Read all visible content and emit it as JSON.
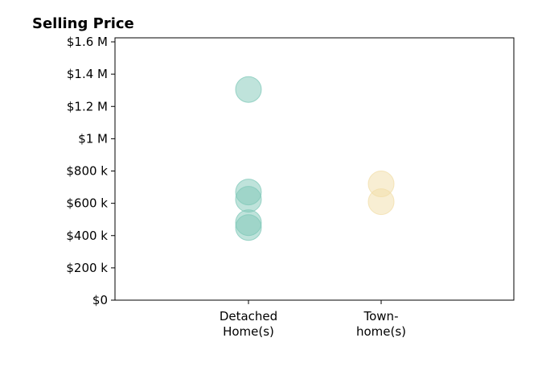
{
  "chart_data": {
    "type": "scatter",
    "title": "Selling Price",
    "xlabel": "",
    "ylabel": "",
    "ylim": [
      0,
      1625000
    ],
    "y_ticks": [
      {
        "value": 0,
        "label": "$0"
      },
      {
        "value": 200000,
        "label": "$200 k"
      },
      {
        "value": 400000,
        "label": "$400 k"
      },
      {
        "value": 600000,
        "label": "$600 k"
      },
      {
        "value": 800000,
        "label": "$800 k"
      },
      {
        "value": 1000000,
        "label": "$1 M"
      },
      {
        "value": 1200000,
        "label": "$1.2 M"
      },
      {
        "value": 1400000,
        "label": "$1.4 M"
      },
      {
        "value": 1600000,
        "label": "$1.6 M"
      }
    ],
    "categories": [
      {
        "lines": [
          "Detached",
          "Home(s)"
        ],
        "color": "#7fc8b8"
      },
      {
        "lines": [
          "Town-",
          "home(s)"
        ],
        "color": "#f1dda8"
      }
    ],
    "series": [
      {
        "category_index": 0,
        "values": [
          1305000,
          670000,
          625000,
          480000,
          450000
        ]
      },
      {
        "category_index": 1,
        "values": [
          720000,
          610000
        ]
      }
    ],
    "grid": false,
    "legend": "none"
  }
}
